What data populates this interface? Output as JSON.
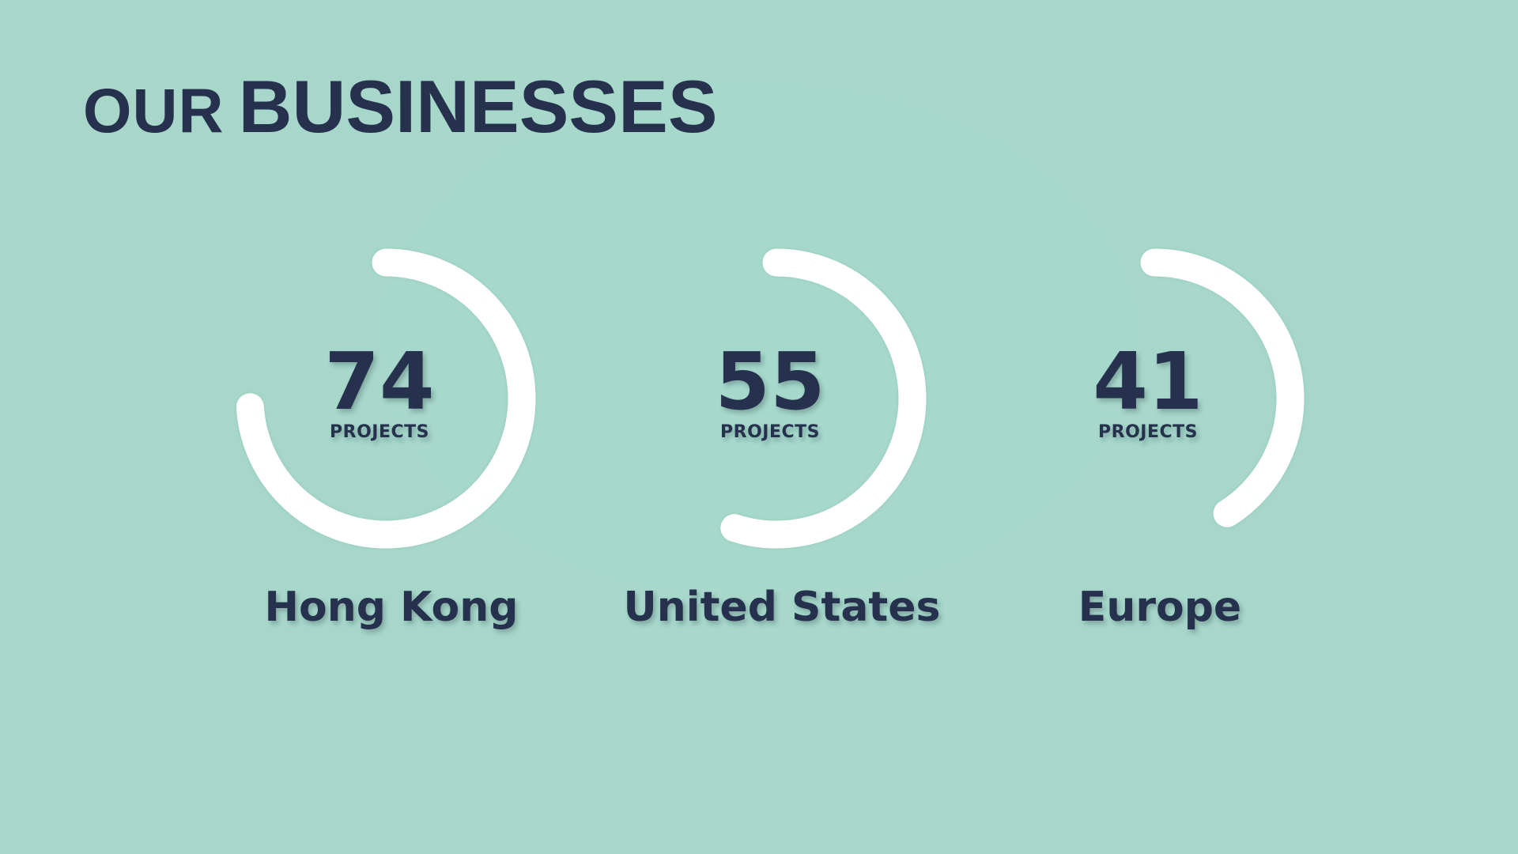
{
  "title": {
    "prefix": "OUR",
    "main": "BUSINESSES"
  },
  "colors": {
    "background": "#a8d8cb",
    "text": "#25314d",
    "ring": "#ffffff"
  },
  "chart_data": {
    "type": "radial-progress",
    "unit": "PROJECTS",
    "items": [
      {
        "label": "Hong Kong",
        "value": 74
      },
      {
        "label": "United States",
        "value": 55
      },
      {
        "label": "Europe",
        "value": 41
      }
    ],
    "max": 100
  }
}
